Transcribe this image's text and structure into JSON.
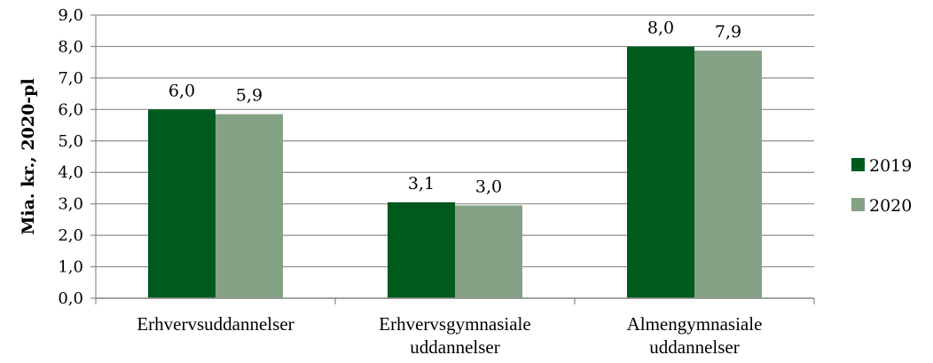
{
  "chart_data": {
    "type": "bar",
    "categories": [
      [
        "Erhvervsuddannelser"
      ],
      [
        "Erhvervsgymnasiale",
        "uddannelser"
      ],
      [
        "Almengymnasiale",
        "uddannelser"
      ]
    ],
    "series": [
      {
        "name": "2019",
        "color": "#005a1e",
        "values": [
          6.0,
          3.05,
          8.0
        ],
        "labels": [
          "6,0",
          "3,1",
          "8,0"
        ]
      },
      {
        "name": "2020",
        "color": "#85a186",
        "values": [
          5.85,
          2.95,
          7.87
        ],
        "labels": [
          "5,9",
          "3,0",
          "7,9"
        ]
      }
    ],
    "ylabel": "Mia. kr., 2020-pl",
    "ylim": [
      0,
      9
    ],
    "yticks": [
      "0,0",
      "1,0",
      "2,0",
      "3,0",
      "4,0",
      "5,0",
      "6,0",
      "7,0",
      "8,0",
      "9,0"
    ],
    "grid": true,
    "legend_position": "right"
  }
}
